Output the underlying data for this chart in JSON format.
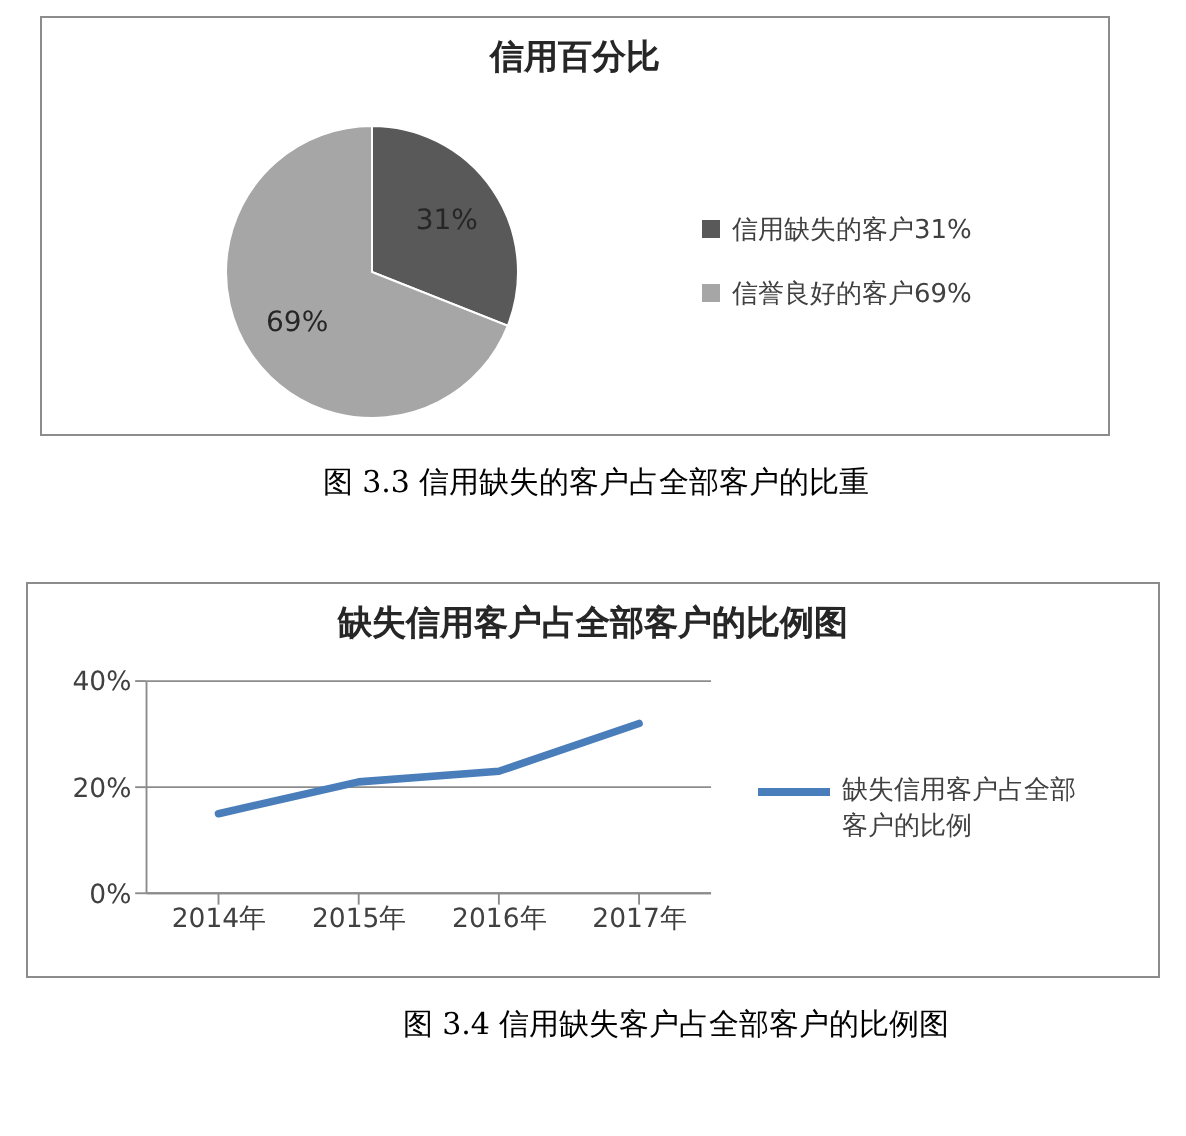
{
  "chart_data": [
    {
      "type": "pie",
      "title": "信用百分比",
      "categories": [
        "信用缺失的客户31%",
        "信誉良好的客户69%"
      ],
      "values": [
        31,
        69
      ],
      "colors": [
        "#595959",
        "#a6a6a6"
      ],
      "value_labels": [
        "31%",
        "69%"
      ],
      "legend": "right",
      "annotations": [
        "图 3.3  信用缺失的客户占全部客户的比重"
      ]
    },
    {
      "type": "line",
      "title": "缺失信用客户占全部客户的比例图",
      "categories": [
        "2014年",
        "2015年",
        "2016年",
        "2017年"
      ],
      "series": [
        {
          "name": "缺失信用客户占全部客户的比例",
          "color": "#4a7ebb",
          "values": [
            15,
            21,
            23,
            32
          ]
        }
      ],
      "ylim": [
        0,
        40
      ],
      "yticks": [
        {
          "value": 0,
          "label": "0%"
        },
        {
          "value": 20,
          "label": "20%"
        },
        {
          "value": 40,
          "label": "40%"
        }
      ],
      "grid": "y",
      "marker": "none",
      "legend": "right",
      "annotations": [
        "图 3.4  信用缺失客户占全部客户的比例图"
      ]
    }
  ]
}
